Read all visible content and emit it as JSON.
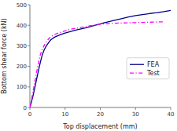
{
  "chart_data": {
    "type": "line",
    "xlabel": "Top displacement (mm)",
    "ylabel": "Bottom shear force (kN)",
    "xlim": [
      0,
      40
    ],
    "ylim": [
      0,
      500
    ],
    "xticks": [
      0,
      10,
      20,
      30,
      40
    ],
    "yticks": [
      0,
      100,
      200,
      300,
      400,
      500
    ],
    "grid": false,
    "legend": "right",
    "series": [
      {
        "name": "FEA",
        "color": "#00008B",
        "line_style": "solid",
        "x": [
          0,
          0.3,
          0.6,
          1.0,
          1.5,
          2.0,
          2.5,
          3.0,
          3.5,
          4.0,
          4.5,
          5.0,
          5.5,
          6.0,
          7.0,
          8.0,
          9.0,
          10.0,
          11.0,
          12.0,
          13.0,
          14.0,
          15.0,
          16.0,
          17.0,
          18.0,
          19.0,
          20.0,
          21.0,
          22.0,
          24.0,
          26.0,
          28.0,
          30.0,
          32.0,
          34.0,
          36.0,
          38.0,
          40.0
        ],
        "values": [
          0,
          18,
          38,
          65,
          105,
          145,
          185,
          222,
          255,
          278,
          295,
          308,
          320,
          330,
          342,
          350,
          356,
          362,
          367,
          372,
          376,
          380,
          384,
          388,
          393,
          397,
          402,
          407,
          412,
          416,
          424,
          432,
          440,
          447,
          452,
          457,
          461,
          466,
          472
        ]
      },
      {
        "name": "Test",
        "color": "#FF00FF",
        "line_style": "dashdot",
        "x": [
          0,
          0.3,
          0.6,
          1.0,
          1.5,
          2.0,
          2.5,
          3.0,
          3.5,
          4.0,
          4.5,
          5.0,
          5.5,
          6.0,
          7.0,
          8.0,
          9.0,
          10.0,
          11.0,
          12.0,
          13.0,
          14.0,
          15.0,
          16.0,
          17.0,
          18.0,
          19.0,
          20.0,
          22.0,
          24.0,
          26.0,
          28.0,
          30.0,
          32.0,
          34.0,
          36.0,
          38.0
        ],
        "values": [
          0,
          22,
          50,
          88,
          135,
          180,
          222,
          258,
          282,
          300,
          315,
          327,
          337,
          345,
          355,
          362,
          367,
          373,
          378,
          382,
          385,
          388,
          391,
          394,
          397,
          400,
          402,
          405,
          408,
          410,
          411,
          412,
          413,
          414,
          415,
          416,
          417
        ]
      }
    ]
  }
}
